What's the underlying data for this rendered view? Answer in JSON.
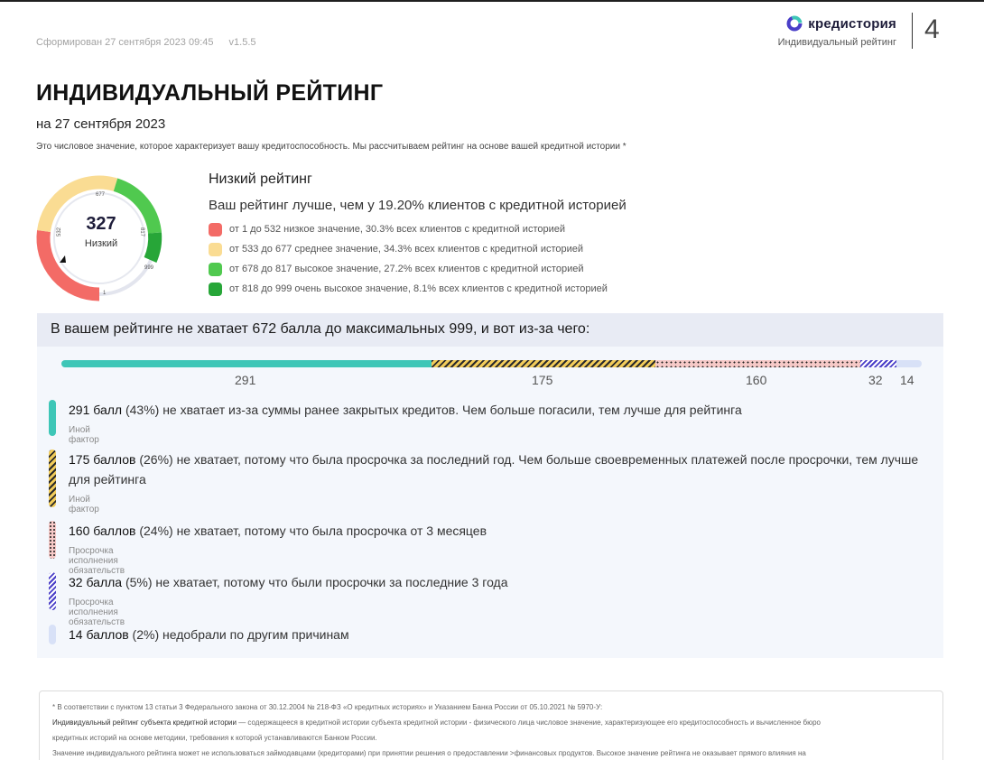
{
  "header": {
    "generated": "Сформирован 27 сентября 2023 09:45",
    "version": "v1.5.5",
    "brand_name": "кредистория",
    "brand_sub": "Индивидуальный рейтинг",
    "page_number": "4"
  },
  "title": "ИНДИВИДУАЛЬНЫЙ РЕЙТИНГ",
  "date": "на 27 сентября 2023",
  "description": "Это числовое значение, которое характеризует вашу кредитоспособность. Мы рассчитываем рейтинг на основе вашей кредитной истории *",
  "gauge": {
    "score": "327",
    "label": "Низкий",
    "tick_labels": [
      "1",
      "532",
      "677",
      "817",
      "999"
    ]
  },
  "rating": {
    "title": "Низкий рейтинг",
    "comparison": "Ваш рейтинг лучше, чем у 19.20% клиентов с кредитной историей",
    "legend": [
      {
        "color": "#f36b66",
        "text": "от 1 до 532 низкое значение, 30.3% всех клиентов с кредитной историей"
      },
      {
        "color": "#fadc93",
        "text": "от 533 до 677 среднее значение, 34.3% всех клиентов с кредитной историей"
      },
      {
        "color": "#50c94f",
        "text": "от 678 до 817 высокое значение, 27.2% всех клиентов с кредитной историей"
      },
      {
        "color": "#27a638",
        "text": "от 818 до 999 очень высокое значение, 8.1% всех клиентов с кредитной историей"
      }
    ]
  },
  "breakdown": {
    "heading": "В вашем рейтинге не хватает 672 балла до максимальных 999, и вот из-за чего:",
    "bar_labels": [
      "291",
      "175",
      "160",
      "32",
      "14"
    ],
    "reasons": [
      {
        "points": "291 балл",
        "rest": " (43%) не хватает из-за суммы ранее закрытых кредитов. Чем больше погасили, тем лучше для рейтинга",
        "category": "Иной фактор"
      },
      {
        "points": "175 баллов",
        "rest": " (26%) не хватает, потому что была просрочка за последний год. Чем больше своевременных платежей после просрочки, тем лучше для рейтинга",
        "category": "Иной фактор"
      },
      {
        "points": "160 баллов",
        "rest": " (24%) не хватает, потому что была просрочка от 3 месяцев",
        "category": "Просрочка исполнения обязательств"
      },
      {
        "points": "32 балла",
        "rest": " (5%) не хватает, потому что были просрочки за последние 3 года",
        "category": "Просрочка исполнения обязательств"
      },
      {
        "points": "14 баллов",
        "rest": " (2%) недобрали по другим причинам",
        "category": ""
      }
    ]
  },
  "footnote": {
    "line1": "* В соответствии с пунктом 13 статьи 3 Федерального закона от 30.12.2004 № 218-ФЗ «О кредитных историях» и Указанием Банка России от 05.10.2021 № 5970-У:",
    "line2_strong": "Индивидуальный рейтинг субъекта кредитной истории",
    "line2_rest": " — содержащееся в кредитной истории субъекта кредитной истории - физического лица числовое значение, характеризующее его кредитоспособность и вычисленное бюро",
    "line3": "кредитных историй на основе методики, требования к которой устанавливаются Банком России.",
    "line4": "Значение индивидуального рейтинга может не использоваться займодавцами (кредиторами) при принятии решения о предоставлении >финансовых продуктов. Высокое значение рейтинга не оказывает прямого влияния на"
  }
}
